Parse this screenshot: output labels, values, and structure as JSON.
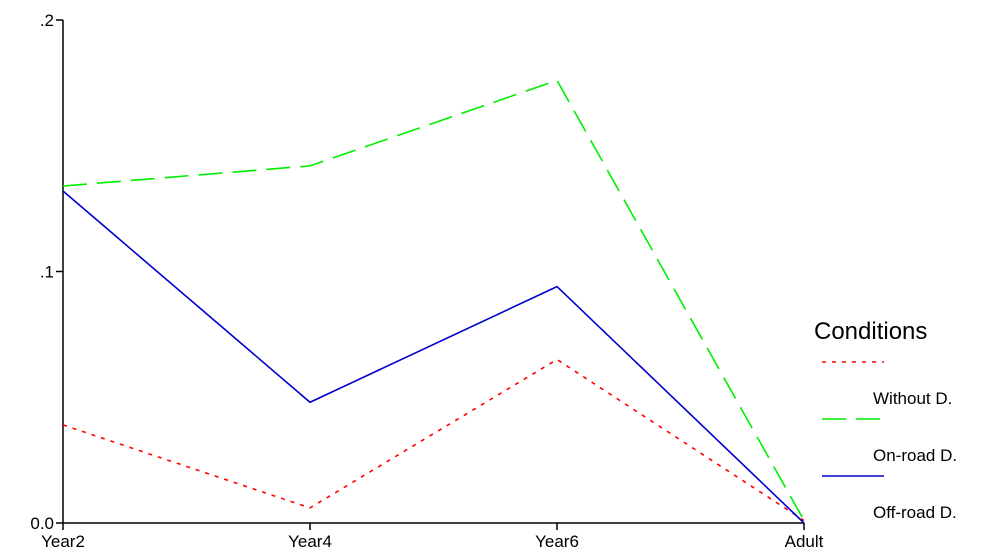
{
  "chart_data": {
    "type": "line",
    "categories": [
      "Year2",
      "Year4",
      "Year6",
      "Adult"
    ],
    "y_ticks": [
      ".2",
      ".1",
      "0.0"
    ],
    "y_tick_values": [
      0.2,
      0.1,
      0.0
    ],
    "ylim": [
      0,
      0.2
    ],
    "grid": false,
    "legend": {
      "title": "Conditions",
      "placement": "right"
    },
    "series": [
      {
        "name": "Without D.",
        "values": [
          0.039,
          0.006,
          0.065,
          0.001
        ],
        "color": "#ff0000",
        "dash": "dotted"
      },
      {
        "name": "On-road D.",
        "values": [
          0.134,
          0.142,
          0.176,
          0.001
        ],
        "color": "#00ee00",
        "dash": "dashed"
      },
      {
        "name": "Off-road D.",
        "values": [
          0.132,
          0.048,
          0.094,
          0.0
        ],
        "color": "#0000cc",
        "dash": "solid"
      }
    ]
  }
}
